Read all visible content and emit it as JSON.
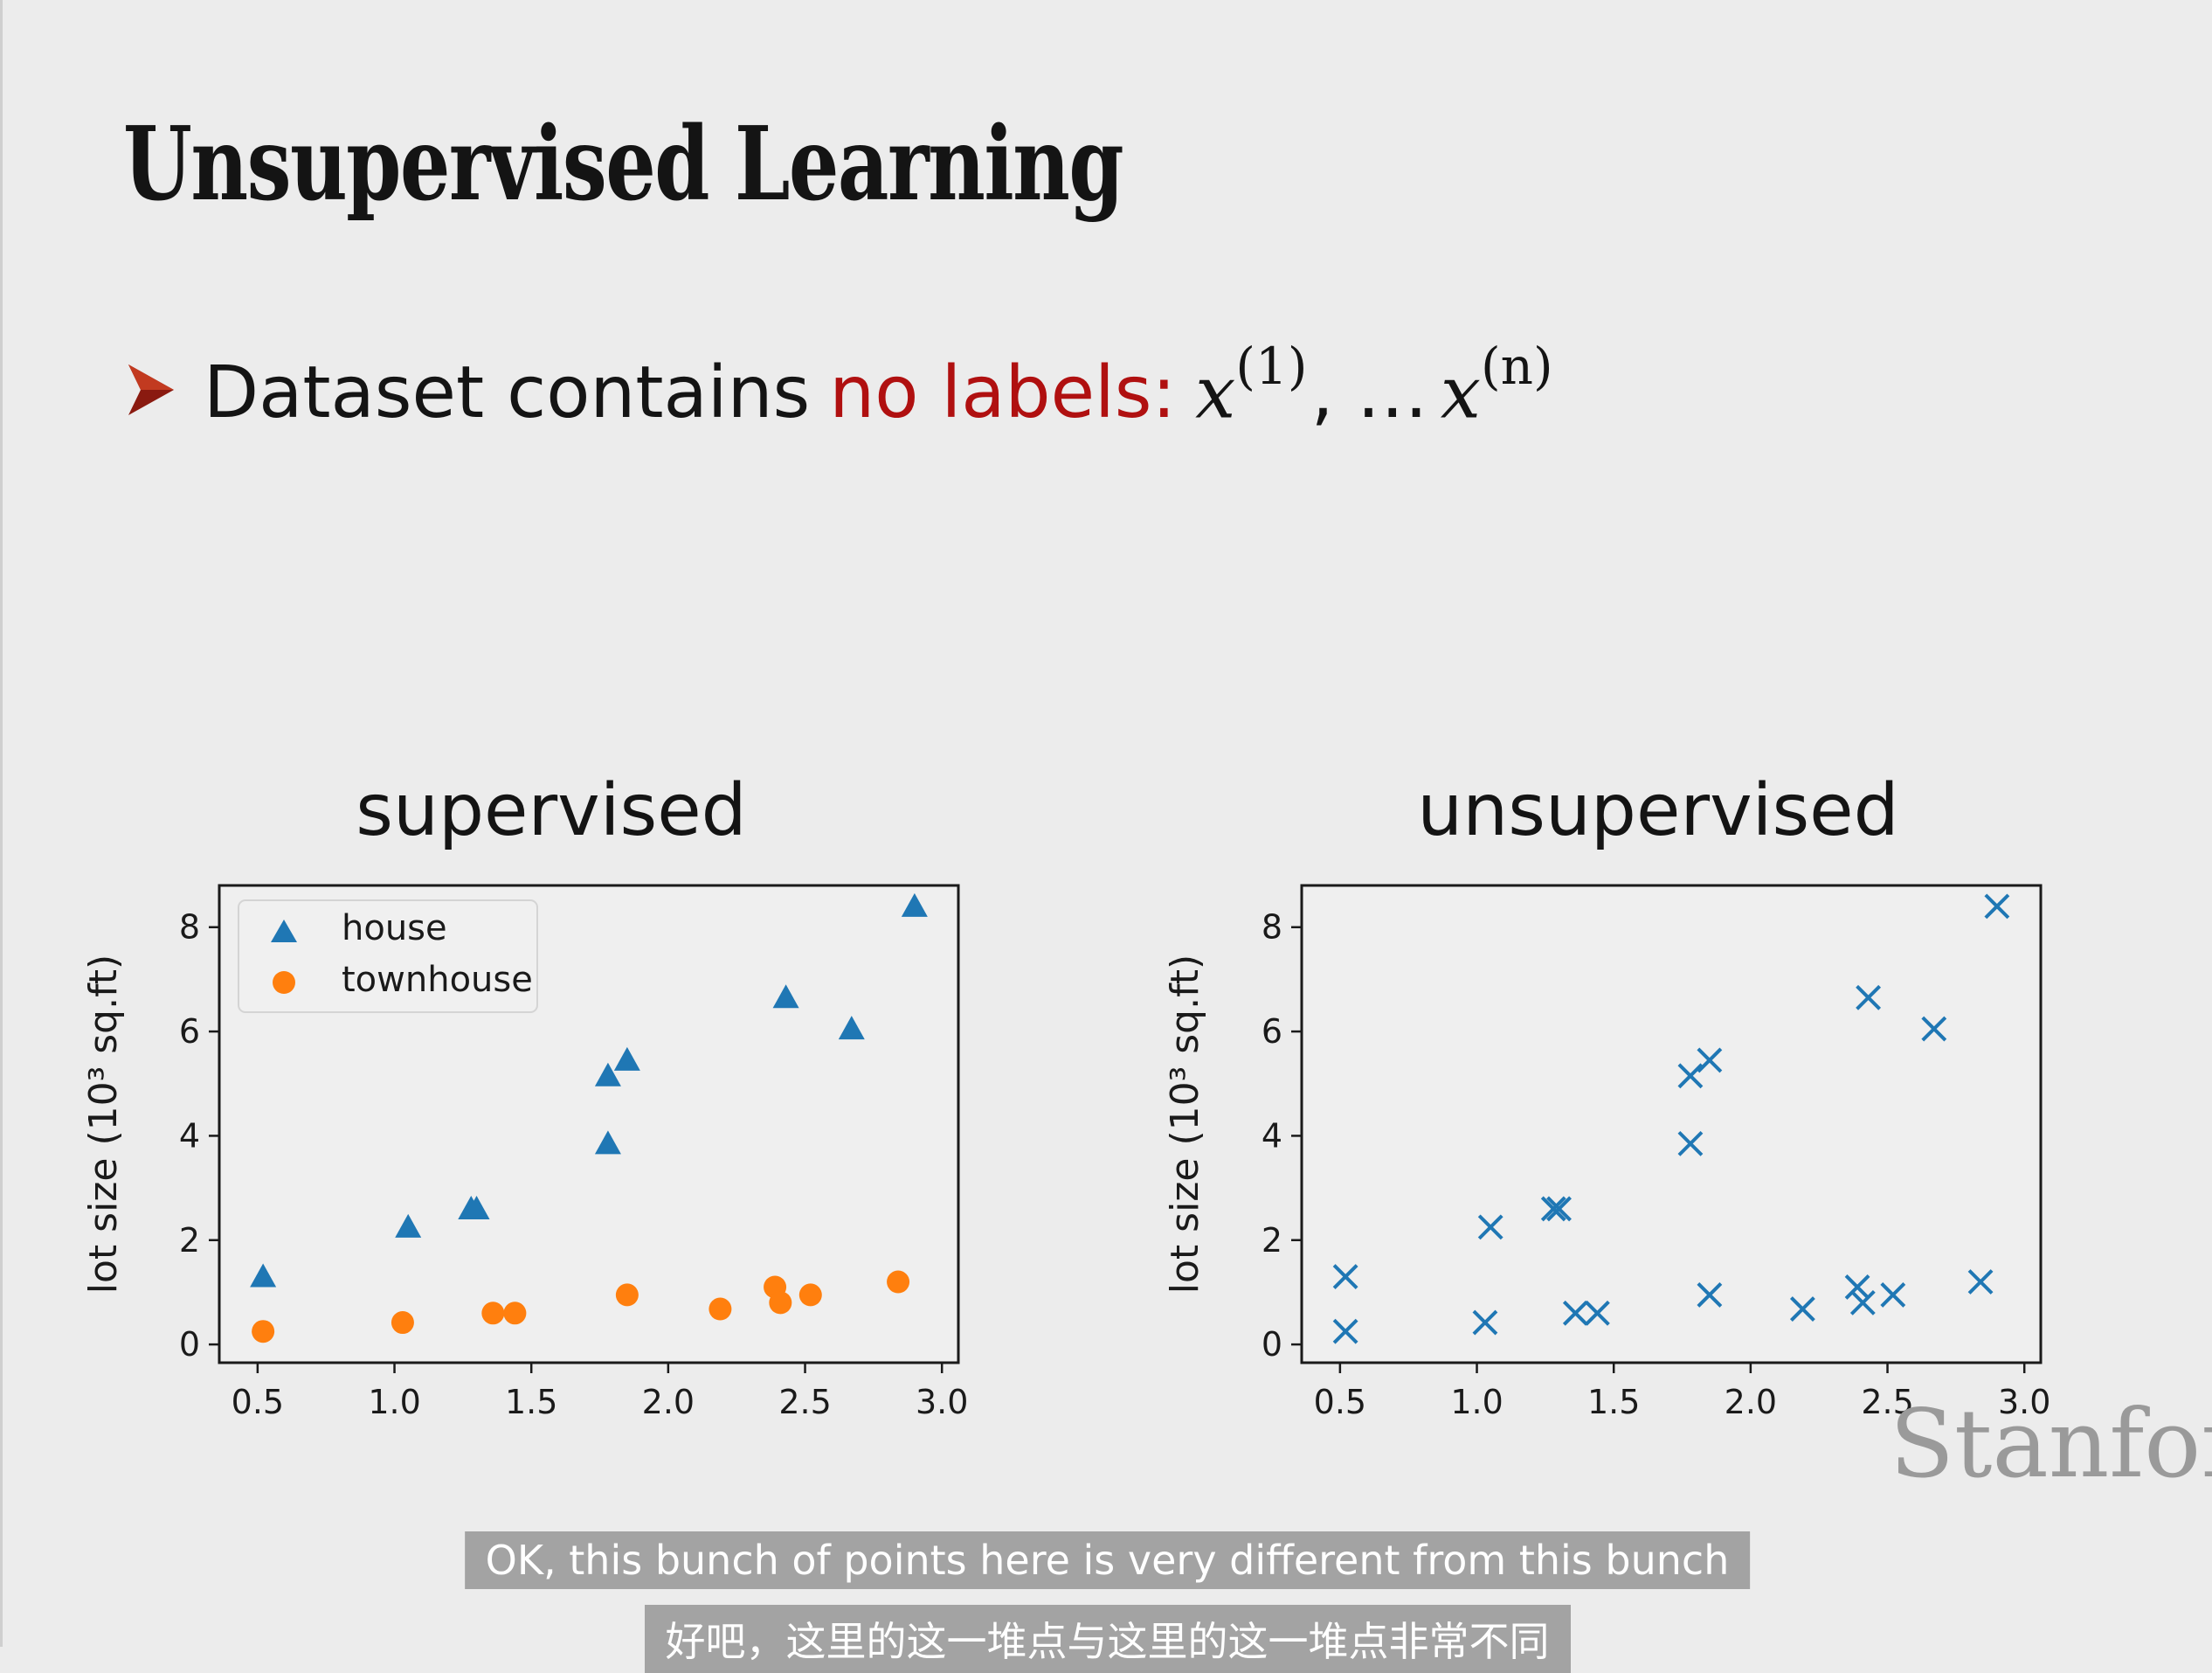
{
  "slide": {
    "title": "Unsupervised Learning",
    "bullet": {
      "prefix": "Dataset contains",
      "highlight": "no labels:",
      "math_symbol": "x",
      "first_superscript": "(1)",
      "separator": ", …",
      "last_superscript": "(n)"
    },
    "watermark": "Stanfor"
  },
  "captions": {
    "english": "OK, this bunch of points here is very different from this bunch",
    "chinese": "好吧，这里的这一堆点与这里的这一堆点非常不同"
  },
  "colors": {
    "house": "#1f77b4",
    "townhouse": "#ff7f0e",
    "unlabeled": "#1f77b4",
    "highlight_text": "#b01010"
  },
  "chart_data": [
    {
      "type": "scatter",
      "title": "supervised",
      "xlabel": "",
      "ylabel": "lot size (10³ sq.ft)",
      "xlim": [
        0.36,
        3.06
      ],
      "ylim": [
        -0.35,
        8.8
      ],
      "xticks": [
        0.5,
        1.0,
        1.5,
        2.0,
        2.5,
        3.0
      ],
      "yticks": [
        0,
        2,
        4,
        6,
        8
      ],
      "legend_position": "top-left",
      "grid": false,
      "series": [
        {
          "name": "house",
          "marker": "triangle",
          "points": [
            [
              0.52,
              1.3
            ],
            [
              1.05,
              2.25
            ],
            [
              1.28,
              2.6
            ],
            [
              1.3,
              2.6
            ],
            [
              1.78,
              3.85
            ],
            [
              1.78,
              5.15
            ],
            [
              1.85,
              5.45
            ],
            [
              2.43,
              6.65
            ],
            [
              2.67,
              6.05
            ],
            [
              2.9,
              8.4
            ]
          ]
        },
        {
          "name": "townhouse",
          "marker": "circle",
          "points": [
            [
              0.52,
              0.25
            ],
            [
              1.03,
              0.42
            ],
            [
              1.36,
              0.6
            ],
            [
              1.44,
              0.6
            ],
            [
              1.85,
              0.95
            ],
            [
              2.19,
              0.68
            ],
            [
              2.39,
              1.1
            ],
            [
              2.41,
              0.8
            ],
            [
              2.52,
              0.95
            ],
            [
              2.84,
              1.2
            ]
          ]
        }
      ]
    },
    {
      "type": "scatter",
      "title": "unsupervised",
      "xlabel": "",
      "ylabel": "lot size (10³ sq.ft)",
      "xlim": [
        0.36,
        3.06
      ],
      "ylim": [
        -0.35,
        8.8
      ],
      "xticks": [
        0.5,
        1.0,
        1.5,
        2.0,
        2.5,
        3.0
      ],
      "yticks": [
        0,
        2,
        4,
        6,
        8
      ],
      "grid": false,
      "series": [
        {
          "marker": "x",
          "points": [
            [
              0.52,
              1.3
            ],
            [
              1.05,
              2.25
            ],
            [
              1.28,
              2.6
            ],
            [
              1.3,
              2.6
            ],
            [
              1.78,
              3.85
            ],
            [
              1.78,
              5.15
            ],
            [
              1.85,
              5.45
            ],
            [
              2.43,
              6.65
            ],
            [
              2.67,
              6.05
            ],
            [
              2.9,
              8.4
            ],
            [
              0.52,
              0.25
            ],
            [
              1.03,
              0.42
            ],
            [
              1.36,
              0.6
            ],
            [
              1.44,
              0.6
            ],
            [
              1.85,
              0.95
            ],
            [
              2.19,
              0.68
            ],
            [
              2.39,
              1.1
            ],
            [
              2.41,
              0.8
            ],
            [
              2.52,
              0.95
            ],
            [
              2.84,
              1.2
            ]
          ]
        }
      ]
    }
  ]
}
